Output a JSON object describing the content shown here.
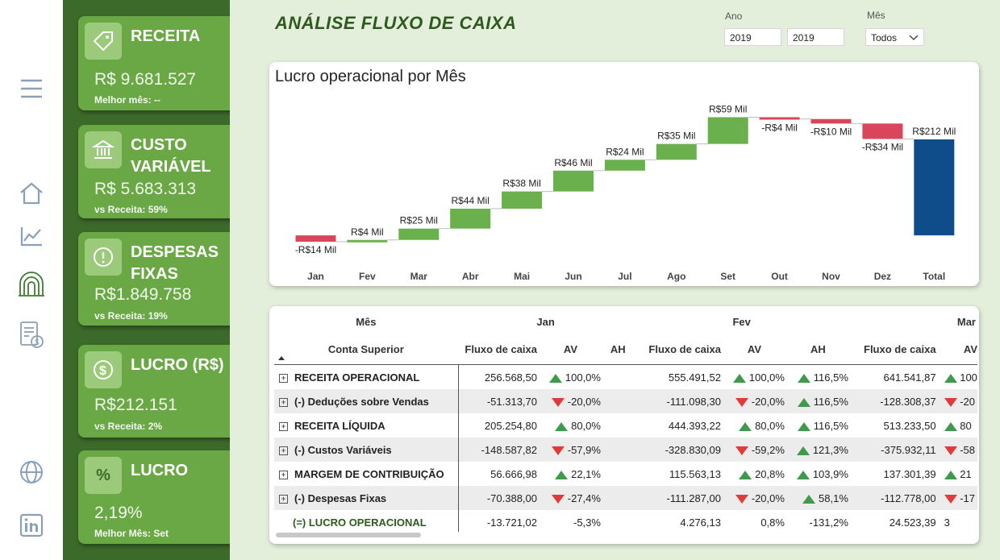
{
  "header": {
    "title": "ANÁLISE FLUXO DE CAIXA"
  },
  "filters": {
    "ano_label": "Ano",
    "ano_from": "2019",
    "ano_to": "2019",
    "mes_label": "Mês",
    "mes_value": "Todos"
  },
  "nav": [
    "menu-icon",
    "home-icon",
    "chart-line-icon",
    "cash-flow-icon",
    "report-icon",
    "globe-icon",
    "linkedin-icon"
  ],
  "kpis": [
    {
      "title": "RECEITA",
      "value": "R$ 9.681.527",
      "sub_label": "Melhor mês:",
      "sub_value": "--",
      "icon": "tag-icon"
    },
    {
      "title": "CUSTO VARIÁVEL",
      "value": "R$ 5.683.313",
      "sub_label": "vs Receita:",
      "sub_value": "59%",
      "icon": "bank-icon"
    },
    {
      "title": "DESPESAS FIXAS",
      "value": "R$1.849.758",
      "sub_label": "vs Receita:",
      "sub_value": "19%",
      "icon": "alert-icon"
    },
    {
      "title": "LUCRO (R$)",
      "value": "R$212.151",
      "sub_label": "vs Receita:",
      "sub_value": "2%",
      "icon": "dollar-icon"
    },
    {
      "title": "LUCRO",
      "value": "2,19%",
      "sub_label": "Melhor Mês:",
      "sub_value": "Set",
      "icon": "percent-icon"
    }
  ],
  "chart_data": {
    "type": "waterfall",
    "title": "Lucro operacional por Mês",
    "categories": [
      "Jan",
      "Fev",
      "Mar",
      "Abr",
      "Mai",
      "Jun",
      "Jul",
      "Ago",
      "Set",
      "Out",
      "Nov",
      "Dez",
      "Total"
    ],
    "values": [
      -14,
      4,
      25,
      44,
      38,
      46,
      24,
      35,
      59,
      -4,
      -10,
      -34,
      212
    ],
    "labels": [
      "-R$14 Mil",
      "R$4 Mil",
      "R$25 Mil",
      "R$44 Mil",
      "R$38 Mil",
      "R$46 Mil",
      "R$24 Mil",
      "R$35 Mil",
      "R$59 Mil",
      "-R$4 Mil",
      "-R$10 Mil",
      "-R$34 Mil",
      "R$212 Mil"
    ],
    "units": "Mil",
    "colors": {
      "increase": "#6ab04c",
      "decrease": "#d9455a",
      "total": "#0f4c8a"
    }
  },
  "matrix": {
    "header_month_label": "Mês",
    "months": [
      "Jan",
      "Fev",
      "Mar"
    ],
    "row_header": "Conta Superior",
    "col_headers": [
      "Fluxo de caixa",
      "AV",
      "AH"
    ],
    "truncated_av_header": "AV",
    "rows": [
      {
        "label": "RECEITA OPERACIONAL",
        "jan": [
          "256.568,50",
          "100,0%",
          ""
        ],
        "fev": [
          "555.491,52",
          "100,0%",
          "116,5%"
        ],
        "mar": [
          "641.541,87",
          "100"
        ],
        "t": [
          "up",
          "up",
          "up",
          "up"
        ]
      },
      {
        "label": "(-) Deduções sobre Vendas",
        "jan": [
          "-51.313,70",
          "-20,0%",
          ""
        ],
        "fev": [
          "-111.098,30",
          "-20,0%",
          "116,5%"
        ],
        "mar": [
          "-128.308,37",
          "-20"
        ],
        "t": [
          "down",
          "down",
          "up",
          "down"
        ]
      },
      {
        "label": "RECEITA LÍQUIDA",
        "jan": [
          "205.254,80",
          "80,0%",
          ""
        ],
        "fev": [
          "444.393,22",
          "80,0%",
          "116,5%"
        ],
        "mar": [
          "513.233,50",
          "80"
        ],
        "t": [
          "up",
          "up",
          "up",
          "up"
        ]
      },
      {
        "label": "(-) Custos Variáveis",
        "jan": [
          "-148.587,82",
          "-57,9%",
          ""
        ],
        "fev": [
          "-328.830,09",
          "-59,2%",
          "121,3%"
        ],
        "mar": [
          "-375.932,11",
          "-58"
        ],
        "t": [
          "down",
          "down",
          "up",
          "down"
        ]
      },
      {
        "label": "MARGEM DE CONTRIBUIÇÃO",
        "jan": [
          "56.666,98",
          "22,1%",
          ""
        ],
        "fev": [
          "115.563,13",
          "20,8%",
          "103,9%"
        ],
        "mar": [
          "137.301,39",
          "21"
        ],
        "t": [
          "up",
          "up",
          "up",
          "up"
        ]
      },
      {
        "label": "(-) Despesas Fixas",
        "jan": [
          "-70.388,00",
          "-27,4%",
          ""
        ],
        "fev": [
          "-111.287,00",
          "-20,0%",
          "58,1%"
        ],
        "mar": [
          "-112.778,00",
          "-17"
        ],
        "t": [
          "down",
          "down",
          "up",
          "down"
        ]
      },
      {
        "label": "(=) LUCRO OPERACIONAL",
        "jan": [
          "-13.721,02",
          "-5,3%",
          ""
        ],
        "fev": [
          "4.276,13",
          "0,8%",
          "-131,2%"
        ],
        "mar": [
          "24.523,39",
          "3"
        ],
        "t": [
          "",
          "",
          "",
          ""
        ]
      }
    ]
  }
}
